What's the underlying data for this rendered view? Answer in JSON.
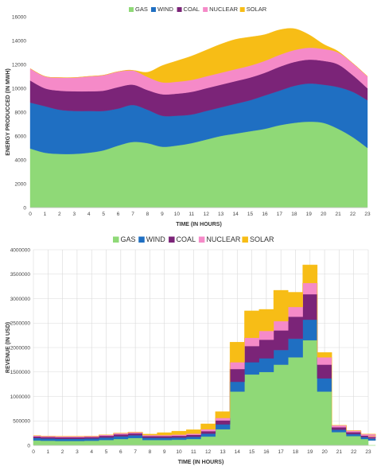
{
  "colors": {
    "GAS": "#8fd977",
    "WIND": "#1f6fc2",
    "COAL": "#7b2478",
    "NUCLEAR": "#f58ac8",
    "SOLAR": "#f7bd16",
    "grid": "#d9d9d9",
    "frame": "#bfbfbf"
  },
  "chart_data": [
    {
      "type": "area",
      "stacked": true,
      "smooth": true,
      "xlabel": "TIME (IN HOURS)",
      "ylabel": "ENERGY PRODUCCED (IN MWH)",
      "ylim": [
        0,
        16000
      ],
      "yticks": [
        0,
        2000,
        4000,
        6000,
        8000,
        10000,
        12000,
        14000,
        16000
      ],
      "ytick_labels": [
        "0",
        "2000",
        "4000",
        "6000",
        "8000",
        "10000",
        "12000",
        "14000",
        "16000"
      ],
      "xtick_labels": [
        "0",
        "1",
        "2",
        "3",
        "4",
        "5",
        "6",
        "7",
        "8",
        "9",
        "10",
        "11",
        "12",
        "13",
        "14",
        "15",
        "16",
        "17",
        "18",
        "19",
        "20",
        "21",
        "22",
        "23"
      ],
      "legend_position": "top-right",
      "grid": false,
      "series": [
        {
          "name": "GAS",
          "values": [
            4950,
            4600,
            4500,
            4500,
            4600,
            4800,
            5200,
            5500,
            5400,
            5100,
            5200,
            5400,
            5700,
            6000,
            6200,
            6400,
            6600,
            6900,
            7100,
            7200,
            7100,
            6600,
            5900,
            5000
          ]
        },
        {
          "name": "WIND",
          "values": [
            3850,
            3900,
            3700,
            3600,
            3500,
            3300,
            3100,
            3100,
            2800,
            2600,
            2500,
            2400,
            2400,
            2400,
            2500,
            2600,
            2800,
            2900,
            3100,
            3200,
            3200,
            3500,
            3800,
            4000
          ]
        },
        {
          "name": "COAL",
          "values": [
            1850,
            1500,
            1600,
            1650,
            1650,
            1700,
            1800,
            1700,
            1650,
            1800,
            1850,
            1900,
            1900,
            1900,
            1900,
            1900,
            1900,
            2000,
            2000,
            2000,
            2000,
            1900,
            1400,
            1000
          ]
        },
        {
          "name": "NUCLEAR",
          "values": [
            1000,
            1000,
            1100,
            1150,
            1250,
            1300,
            1300,
            1200,
            1100,
            1000,
            1000,
            1000,
            1000,
            1000,
            1000,
            1000,
            1000,
            1000,
            1000,
            1000,
            1000,
            1000,
            1000,
            1000
          ]
        },
        {
          "name": "SOLAR",
          "values": [
            0,
            0,
            0,
            0,
            0,
            0,
            0,
            0,
            400,
            1400,
            1750,
            2000,
            2200,
            2400,
            2500,
            2400,
            2200,
            2100,
            1800,
            1100,
            400,
            100,
            0,
            0
          ]
        }
      ]
    },
    {
      "type": "area",
      "stacked": true,
      "step": true,
      "xlabel": "TIME (IN HOURS)",
      "ylabel": "REVENUE (IN USD)",
      "ylim": [
        0,
        4000000
      ],
      "yticks": [
        0,
        500000,
        1000000,
        1500000,
        2000000,
        2500000,
        3000000,
        3500000,
        4000000
      ],
      "ytick_labels": [
        "0",
        "500000",
        "1000000",
        "1500000",
        "2000000",
        "2500000",
        "3000000",
        "3500000",
        "4000000"
      ],
      "xtick_labels": [
        "0",
        "1",
        "2",
        "3",
        "4",
        "5",
        "6",
        "7",
        "8",
        "9",
        "10",
        "11",
        "12",
        "13",
        "14",
        "15",
        "16",
        "17",
        "18",
        "19",
        "20",
        "21",
        "22",
        "23"
      ],
      "legend_position": "top",
      "grid": true,
      "series": [
        {
          "name": "GAS",
          "values": [
            100000,
            95000,
            90000,
            90000,
            95000,
            110000,
            130000,
            150000,
            110000,
            110000,
            115000,
            130000,
            180000,
            330000,
            1100000,
            1450000,
            1500000,
            1650000,
            1800000,
            2150000,
            1100000,
            270000,
            190000,
            130000,
            100000
          ]
        },
        {
          "name": "WIND",
          "values": [
            50000,
            45000,
            45000,
            45000,
            45000,
            50000,
            55000,
            55000,
            45000,
            45000,
            45000,
            45000,
            60000,
            100000,
            200000,
            250000,
            280000,
            300000,
            380000,
            420000,
            270000,
            50000,
            40000,
            40000,
            40000
          ]
        },
        {
          "name": "COAL",
          "values": [
            30000,
            30000,
            30000,
            30000,
            30000,
            35000,
            40000,
            40000,
            35000,
            35000,
            35000,
            40000,
            50000,
            80000,
            260000,
            330000,
            380000,
            400000,
            450000,
            520000,
            280000,
            50000,
            40000,
            30000,
            30000
          ]
        },
        {
          "name": "NUCLEAR",
          "values": [
            20000,
            20000,
            20000,
            20000,
            20000,
            20000,
            25000,
            25000,
            20000,
            20000,
            25000,
            25000,
            40000,
            50000,
            140000,
            170000,
            180000,
            190000,
            200000,
            230000,
            150000,
            40000,
            30000,
            30000,
            20000
          ]
        },
        {
          "name": "SOLAR",
          "values": [
            0,
            0,
            0,
            0,
            0,
            0,
            0,
            0,
            20000,
            50000,
            70000,
            80000,
            110000,
            130000,
            410000,
            550000,
            440000,
            630000,
            300000,
            370000,
            100000,
            0,
            0,
            0,
            0
          ]
        }
      ]
    }
  ]
}
